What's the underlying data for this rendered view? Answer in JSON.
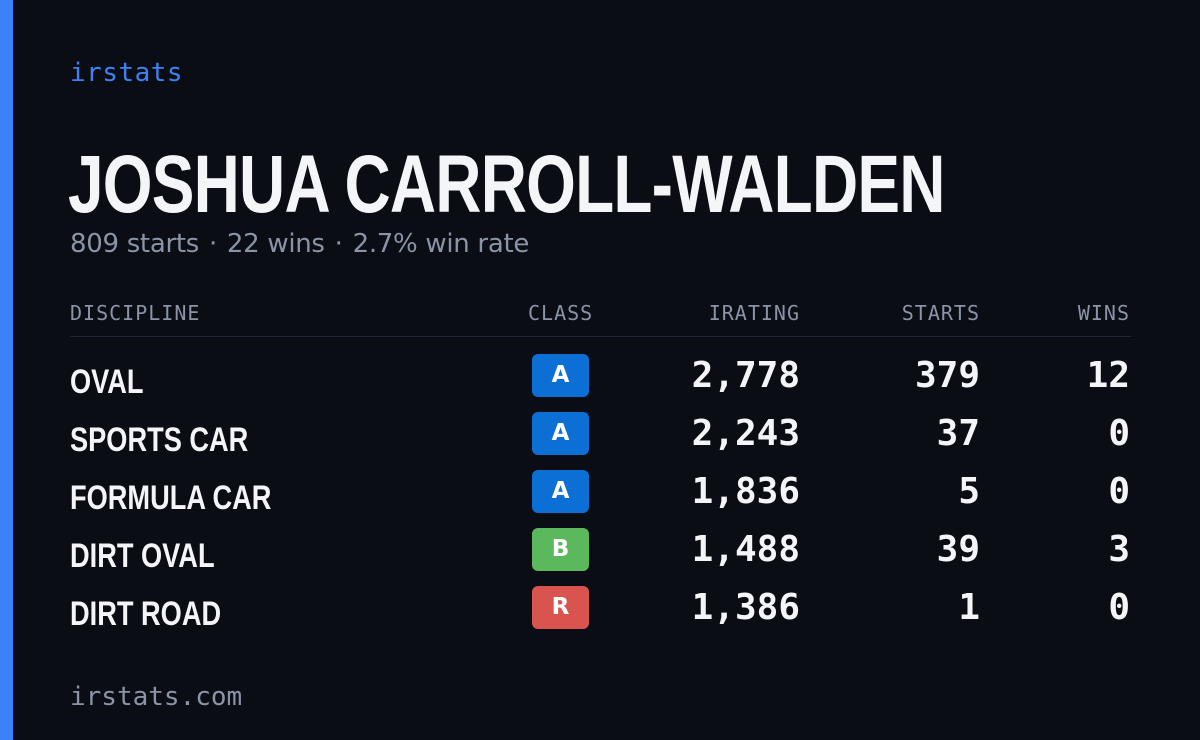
{
  "brand": "irstats",
  "player": {
    "name": "JOSHUA CARROLL-WALDEN",
    "starts_text": "809 starts",
    "wins_text": "22 wins",
    "win_rate_text": "2.7% win rate",
    "separator": "·"
  },
  "table": {
    "headers": {
      "discipline": "DISCIPLINE",
      "class": "CLASS",
      "irating": "IRATING",
      "starts": "STARTS",
      "wins": "WINS"
    },
    "rows": [
      {
        "discipline": "OVAL",
        "class": "A",
        "irating": "2,778",
        "starts": "379",
        "wins": "12"
      },
      {
        "discipline": "SPORTS CAR",
        "class": "A",
        "irating": "2,243",
        "starts": "37",
        "wins": "0"
      },
      {
        "discipline": "FORMULA CAR",
        "class": "A",
        "irating": "1,836",
        "starts": "5",
        "wins": "0"
      },
      {
        "discipline": "DIRT OVAL",
        "class": "B",
        "irating": "1,488",
        "starts": "39",
        "wins": "3"
      },
      {
        "discipline": "DIRT ROAD",
        "class": "R",
        "irating": "1,386",
        "starts": "1",
        "wins": "0"
      }
    ]
  },
  "class_colors": {
    "A": "#0c6fd6",
    "B": "#5cb85c",
    "R": "#d9534f"
  },
  "colors": {
    "accent": "#3b82f6",
    "background": "#0a0d14",
    "muted_text": "#8b93a7",
    "primary_text": "#f4f5f8"
  },
  "footer": "irstats.com"
}
